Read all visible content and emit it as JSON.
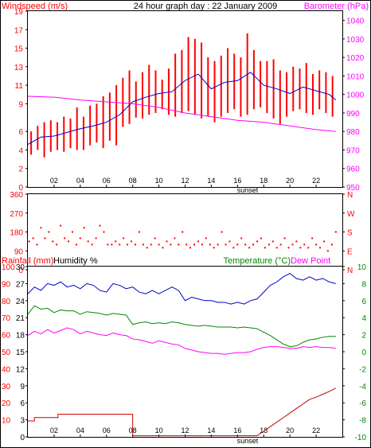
{
  "colors": {
    "frame": "#000000",
    "windspeed": "#ff0000",
    "windavg": "#0000cc",
    "barometer": "#ff00ff",
    "direction": "#ff0000",
    "rainfall": "#cc0000",
    "humidity": "#0000cc",
    "temperature": "#008800",
    "dewpoint": "#ff00ff",
    "label_red": "#ff0000",
    "label_magenta": "#ff00ff",
    "label_green": "#008800",
    "label_black": "#000000"
  },
  "chart_data": [
    {
      "type": "line",
      "title": "24 hour graph day : 22 January 2009",
      "left_axis_label": "Windspeed (m/s)",
      "right_axis_label": "Barometer (hPa)",
      "x_tick_labels": [
        "02",
        "04",
        "06",
        "08",
        "10",
        "12",
        "14",
        "16",
        "18",
        "20",
        "22"
      ],
      "x_annotation": "sunset",
      "left_ticks": [
        0,
        2,
        4,
        6,
        9,
        11,
        13,
        15,
        17,
        19
      ],
      "right_ticks": [
        950,
        960,
        970,
        980,
        990,
        1000,
        1010,
        1020,
        1030,
        1040
      ],
      "ylim_left": [
        0,
        19
      ],
      "ylim_right": [
        950,
        1045
      ],
      "xlim": [
        0,
        24
      ],
      "series": [
        {
          "axis": "left",
          "style": "bars",
          "x": [
            0.25,
            0.75,
            1.25,
            1.75,
            2.25,
            2.75,
            3.25,
            3.75,
            4.25,
            4.75,
            5.25,
            5.75,
            6.25,
            6.75,
            7.25,
            7.75,
            8.25,
            8.75,
            9.25,
            9.75,
            10.25,
            10.75,
            11.25,
            11.75,
            12.25,
            12.75,
            13.25,
            13.75,
            14.25,
            14.75,
            15.25,
            15.75,
            16.25,
            16.75,
            17.25,
            17.75,
            18.25,
            18.75,
            19.25,
            19.75,
            20.25,
            20.75,
            21.25,
            21.75,
            22.25,
            22.75,
            23.25
          ],
          "values": [
            4.8,
            5.8,
            5.2,
            5.6,
            5.5,
            5.8,
            5.9,
            6.3,
            6.0,
            6.6,
            6.8,
            7.0,
            7.6,
            8.5,
            9.0,
            9.5,
            9.6,
            9.8,
            10.1,
            10.2,
            9.9,
            10.4,
            11.0,
            11.8,
            12.6,
            13.4,
            12.0,
            11.2,
            10.5,
            11.2,
            11.7,
            11.8,
            11.6,
            12.2,
            11.6,
            11.0,
            10.9,
            10.8,
            10.2,
            10.3,
            10.6,
            10.5,
            10.8,
            10.6,
            10.4,
            10.1,
            9.6
          ],
          "lows": [
            3.5,
            4.0,
            3.2,
            3.8,
            4.0,
            3.8,
            4.2,
            4.0,
            4.0,
            4.5,
            4.8,
            4.2,
            5.0,
            4.5,
            6.5,
            6.8,
            7.5,
            7.4,
            7.8,
            8.0,
            8.4,
            7.8,
            7.6,
            8.0,
            8.2,
            7.8,
            7.4,
            7.6,
            7.0,
            7.6,
            8.0,
            8.4,
            7.6,
            7.8,
            8.4,
            8.6,
            8.0,
            7.4,
            6.8,
            7.6,
            8.2,
            8.4,
            8.0,
            7.8,
            8.4,
            8.0,
            7.6
          ],
          "highs": [
            6.0,
            6.6,
            7.0,
            7.2,
            7.0,
            7.6,
            7.4,
            8.6,
            7.6,
            8.8,
            9.0,
            9.8,
            10.2,
            11.0,
            11.8,
            12.6,
            11.4,
            12.4,
            13.2,
            12.6,
            11.6,
            12.8,
            14.4,
            14.8,
            16.2,
            16.0,
            15.6,
            14.0,
            13.6,
            14.2,
            15.0,
            14.4,
            14.0,
            16.6,
            14.8,
            13.6,
            13.6,
            13.8,
            12.6,
            12.4,
            13.0,
            12.8,
            13.4,
            12.2,
            12.6,
            12.4,
            12.0
          ]
        },
        {
          "axis": "left",
          "style": "line",
          "x": [
            0,
            1,
            2,
            3,
            4,
            5,
            6,
            7,
            8,
            9,
            10,
            11,
            12,
            13,
            14,
            15,
            16,
            17,
            18,
            19,
            20,
            21,
            22,
            23,
            23.5
          ],
          "values": [
            4.6,
            5.4,
            5.5,
            5.9,
            6.3,
            6.6,
            7.0,
            7.8,
            9.2,
            9.7,
            10.1,
            10.3,
            11.5,
            12.2,
            10.6,
            11.3,
            11.5,
            12.4,
            11.0,
            10.6,
            10.1,
            10.8,
            10.4,
            10.0,
            9.4
          ]
        },
        {
          "axis": "right",
          "style": "line",
          "x": [
            0,
            2,
            4,
            6,
            8,
            10,
            12,
            14,
            16,
            18,
            20,
            22,
            23.5
          ],
          "values": [
            999,
            998.5,
            997,
            996,
            995,
            993,
            990,
            988,
            986,
            985,
            983,
            981,
            980
          ]
        }
      ]
    },
    {
      "type": "scatter",
      "left_ticks": [
        0,
        90,
        180,
        270,
        360
      ],
      "right_ticks": [
        "N",
        "W",
        "S",
        "E",
        "N"
      ],
      "ylim": [
        0,
        360
      ],
      "xlim": [
        0,
        24
      ],
      "series": [
        {
          "x": [
            0.1,
            0.4,
            0.7,
            1.0,
            1.3,
            1.6,
            1.9,
            2.2,
            2.5,
            2.8,
            3.1,
            3.4,
            3.7,
            4.0,
            4.3,
            4.6,
            4.9,
            5.2,
            5.5,
            5.8,
            6.1,
            6.4,
            6.7,
            7.0,
            7.3,
            7.6,
            7.9,
            8.2,
            8.5,
            8.8,
            9.1,
            9.4,
            9.7,
            10.0,
            10.3,
            10.6,
            10.9,
            11.2,
            11.5,
            11.8,
            12.1,
            12.4,
            12.7,
            13.0,
            13.3,
            13.6,
            13.9,
            14.2,
            14.5,
            14.8,
            15.1,
            15.4,
            15.7,
            16.0,
            16.3,
            16.6,
            16.9,
            17.2,
            17.5,
            17.8,
            18.1,
            18.4,
            18.7,
            19.0,
            19.3,
            19.6,
            19.9,
            20.2,
            20.5,
            20.8,
            21.1,
            21.4,
            21.7,
            22.0,
            22.3,
            22.6,
            22.9,
            23.2,
            23.5
          ],
          "values": [
            135,
            150,
            120,
            200,
            150,
            180,
            135,
            120,
            210,
            150,
            135,
            180,
            120,
            150,
            200,
            135,
            120,
            150,
            210,
            180,
            120,
            120,
            135,
            120,
            150,
            120,
            135,
            120,
            180,
            120,
            105,
            120,
            150,
            120,
            105,
            135,
            120,
            150,
            120,
            180,
            120,
            105,
            120,
            135,
            120,
            150,
            120,
            105,
            120,
            180,
            120,
            135,
            105,
            120,
            150,
            120,
            105,
            120,
            135,
            150,
            105,
            120,
            135,
            105,
            120,
            150,
            105,
            120,
            135,
            105,
            120,
            105,
            150,
            120,
            105,
            135,
            90,
            120,
            180
          ]
        }
      ]
    },
    {
      "type": "line",
      "rain_axis_label": "Rainfall (mm)",
      "humidity_axis_label": "Humidity %",
      "temp_axis_label": "Temperature (°C)",
      "dew_axis_label": "Dew Point",
      "x_tick_labels": [
        "02",
        "04",
        "06",
        "08",
        "10",
        "12",
        "14",
        "16",
        "18",
        "20",
        "22"
      ],
      "x_annotation": "sunset",
      "rain_ticks": [
        0,
        3,
        6,
        9,
        12,
        15,
        18,
        21,
        24,
        27,
        30
      ],
      "humidity_ticks": [
        10,
        20,
        30,
        40,
        50,
        60,
        70,
        80,
        90,
        100
      ],
      "temp_ticks": [
        -10,
        -8,
        -6,
        -4,
        -2,
        0,
        2,
        4,
        6,
        8,
        10
      ],
      "ylim_rain": [
        0,
        30
      ],
      "ylim_temp": [
        -10,
        10
      ],
      "xlim": [
        0,
        24
      ],
      "series": [
        {
          "name": "Rainfall",
          "axis": "rain",
          "style": "step",
          "x": [
            0,
            0.5,
            0.5,
            2.3,
            2.3,
            8.0,
            8.0,
            17.5,
            18.0,
            18.5,
            19.0,
            19.5,
            20.0,
            20.5,
            21.0,
            21.5,
            22.0,
            22.5,
            23.0,
            23.5
          ],
          "values": [
            2.8,
            2.8,
            3.4,
            3.4,
            4.0,
            4.0,
            0.2,
            0.2,
            1.0,
            1.8,
            2.6,
            3.4,
            4.2,
            5.0,
            5.8,
            6.6,
            7.0,
            7.5,
            8.0,
            8.6
          ]
        },
        {
          "name": "Humidity",
          "axis": "humidity",
          "style": "line",
          "x": [
            0,
            0.5,
            1,
            1.5,
            2,
            2.5,
            3,
            3.5,
            4,
            4.5,
            5,
            5.5,
            6,
            6.5,
            7,
            7.5,
            8,
            8.5,
            9,
            9.5,
            10,
            10.5,
            11,
            11.5,
            12,
            12.5,
            13,
            13.5,
            14,
            14.5,
            15,
            15.5,
            16,
            16.5,
            17,
            17.5,
            18,
            18.5,
            19,
            19.5,
            20,
            20.5,
            21,
            21.5,
            22,
            22.5,
            23,
            23.5
          ],
          "values": [
            84,
            88,
            86,
            90,
            89,
            91,
            88,
            89,
            87,
            90,
            89,
            86,
            85,
            90,
            89,
            87,
            88,
            85,
            84,
            86,
            84,
            86,
            88,
            86,
            80,
            82,
            81,
            80,
            80,
            79,
            79,
            78,
            79,
            78,
            80,
            81,
            85,
            89,
            91,
            94,
            96,
            93,
            92,
            94,
            92,
            93,
            91,
            90
          ]
        },
        {
          "name": "Temperature",
          "axis": "temp",
          "style": "line",
          "x": [
            0,
            0.5,
            1,
            1.5,
            2,
            2.5,
            3,
            3.5,
            4,
            4.5,
            5,
            5.5,
            6,
            6.5,
            7,
            7.5,
            8,
            8.5,
            9,
            9.5,
            10,
            10.5,
            11,
            11.5,
            12,
            12.5,
            13,
            13.5,
            14,
            14.5,
            15,
            15.5,
            16,
            16.5,
            17,
            17.5,
            18,
            18.5,
            19,
            19.5,
            20,
            20.5,
            21,
            21.5,
            22,
            22.5,
            23,
            23.5
          ],
          "values": [
            4.4,
            5.4,
            5.0,
            5.1,
            4.6,
            4.9,
            4.8,
            4.8,
            4.4,
            4.7,
            4.6,
            4.5,
            4.3,
            4.5,
            4.4,
            4.3,
            3.2,
            3.4,
            3.5,
            3.3,
            3.4,
            3.3,
            3.5,
            3.4,
            3.2,
            3.1,
            3.0,
            3.1,
            3.0,
            2.9,
            2.9,
            2.9,
            2.8,
            2.9,
            2.8,
            2.7,
            2.3,
            1.9,
            1.4,
            0.9,
            0.6,
            0.7,
            1.1,
            1.4,
            1.5,
            1.7,
            1.8,
            1.8
          ]
        },
        {
          "name": "Dew Point",
          "axis": "temp",
          "style": "line",
          "x": [
            0,
            0.5,
            1,
            1.5,
            2,
            2.5,
            3,
            3.5,
            4,
            4.5,
            5,
            5.5,
            6,
            6.5,
            7,
            7.5,
            8,
            8.5,
            9,
            9.5,
            10,
            10.5,
            11,
            11.5,
            12,
            12.5,
            13,
            13.5,
            14,
            14.5,
            15,
            15.5,
            16,
            16.5,
            17,
            17.5,
            18,
            18.5,
            19,
            19.5,
            20,
            20.5,
            21,
            21.5,
            22,
            22.5,
            23,
            23.5
          ],
          "values": [
            1.9,
            2.4,
            2.1,
            2.6,
            2.2,
            2.5,
            2.8,
            2.6,
            2.1,
            2.4,
            2.2,
            2.0,
            1.9,
            2.2,
            2.0,
            1.9,
            1.5,
            1.4,
            1.2,
            1.0,
            1.3,
            1.1,
            0.9,
            0.8,
            0.4,
            0.2,
            0.0,
            -0.1,
            -0.2,
            -0.2,
            -0.3,
            -0.2,
            -0.1,
            -0.1,
            0.0,
            0.3,
            0.5,
            0.6,
            0.6,
            0.5,
            0.4,
            0.4,
            0.6,
            0.5,
            0.6,
            0.5,
            0.5,
            0.4
          ]
        }
      ]
    }
  ]
}
